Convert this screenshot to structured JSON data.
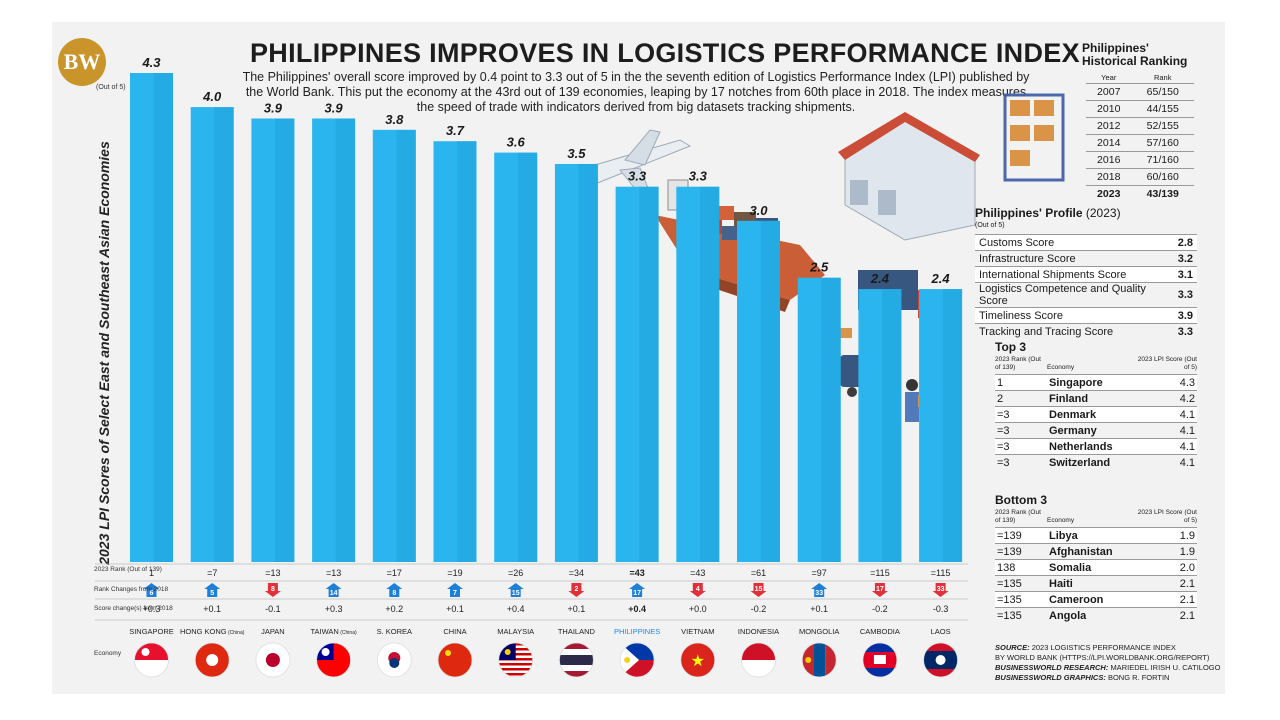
{
  "logo": "BW",
  "title": "PHILIPPINES IMPROVES IN LOGISTICS PERFORMANCE INDEX",
  "subtitle": "The Philippines' overall score improved by 0.4 point to 3.3 out of 5 in the the seventh edition of Logistics Performance Index (LPI) published by the World Bank. This put the economy at the 43rd out of 139 economies, leaping by 17 notches from 60th place in 2018. The index measures the speed of trade with indicators derived from big datasets tracking shipments.",
  "chart_data": {
    "type": "bar",
    "ylabel": "2023 LPI Scores of Select East and Southeast Asian Economies",
    "unit_note": "(Out of 5)",
    "ylim": [
      0,
      4.3
    ],
    "categories": [
      "SINGAPORE",
      "HONG KONG",
      "JAPAN",
      "TAIWAN",
      "S. KOREA",
      "CHINA",
      "MALAYSIA",
      "THAILAND",
      "PHILIPPINES",
      "VIETNAM",
      "INDONESIA",
      "MONGOLIA",
      "CAMBODIA",
      "LAOS"
    ],
    "category_notes": [
      "",
      "(China)",
      "",
      "(China)",
      "",
      "",
      "",
      "",
      "",
      "",
      "",
      "",
      "",
      ""
    ],
    "values": [
      4.3,
      4.0,
      3.9,
      3.9,
      3.8,
      3.7,
      3.6,
      3.5,
      3.3,
      3.3,
      3.0,
      2.5,
      2.4,
      2.4
    ],
    "value_labels": [
      "4.3",
      "4.0",
      "3.9",
      "3.9",
      "3.8",
      "3.7",
      "3.6",
      "3.5",
      "3.3",
      "3.3",
      "3.0",
      "2.5",
      "2.4",
      "2.4"
    ],
    "rank_2023": [
      "1",
      "=7",
      "=13",
      "=13",
      "=17",
      "=19",
      "=26",
      "=34",
      "=43",
      "=43",
      "=61",
      "=97",
      "=115",
      "=115"
    ],
    "rank_change": [
      "6",
      "5",
      "8",
      "14",
      "8",
      "7",
      "15",
      "2",
      "17",
      "4",
      "15",
      "33",
      "17",
      "33"
    ],
    "rank_direction": [
      "up",
      "up",
      "down",
      "up",
      "up",
      "up",
      "up",
      "down",
      "up",
      "down",
      "down",
      "up",
      "down",
      "down"
    ],
    "score_change": [
      "+0.3",
      "+0.1",
      "-0.1",
      "+0.3",
      "+0.2",
      "+0.1",
      "+0.4",
      "+0.1",
      "+0.4",
      "+0.0",
      "-0.2",
      "+0.1",
      "-0.2",
      "-0.3"
    ],
    "highlight": "PHILIPPINES",
    "bar_color": "#2bb5ee",
    "highlight_color": "#2bb5ee"
  },
  "row_labels": {
    "rank": "2023 Rank (Out of 139)",
    "rank_change": "Rank Changes from 2018",
    "score_change": "Score change(s) from 2018",
    "economy": "Economy"
  },
  "colors": {
    "up": "#1e7fd8",
    "down": "#e0303a",
    "accent": "#0a9fe0",
    "philippines": "#1e88e5"
  },
  "historical": {
    "title_line1": "Philippines'",
    "title_line2": "Historical Ranking",
    "col_year": "Year",
    "col_rank": "Rank",
    "rows": [
      {
        "year": "2007",
        "rank": "65/150"
      },
      {
        "year": "2010",
        "rank": "44/155"
      },
      {
        "year": "2012",
        "rank": "52/155"
      },
      {
        "year": "2014",
        "rank": "57/160"
      },
      {
        "year": "2016",
        "rank": "71/160"
      },
      {
        "year": "2018",
        "rank": "60/160"
      },
      {
        "year": "2023",
        "rank": "43/139"
      }
    ]
  },
  "profile": {
    "title": "Philippines' Profile",
    "year": "(2023)",
    "note": "(Out of 5)",
    "rows": [
      {
        "label": "Customs Score",
        "value": "2.8"
      },
      {
        "label": "Infrastructure Score",
        "value": "3.2"
      },
      {
        "label": "International Shipments Score",
        "value": "3.1"
      },
      {
        "label": "Logistics Competence and Quality Score",
        "value": "3.3"
      },
      {
        "label": "Timeliness Score",
        "value": "3.9"
      },
      {
        "label": "Tracking and Tracing Score",
        "value": "3.3"
      }
    ]
  },
  "top3": {
    "title": "Top 3",
    "col_rank": "2023 Rank (Out of 139)",
    "col_economy": "Economy",
    "col_score": "2023 LPI Score (Out of 5)",
    "rows": [
      {
        "rank": "1",
        "economy": "Singapore",
        "score": "4.3"
      },
      {
        "rank": "2",
        "economy": "Finland",
        "score": "4.2"
      },
      {
        "rank": "=3",
        "economy": "Denmark",
        "score": "4.1"
      },
      {
        "rank": "=3",
        "economy": "Germany",
        "score": "4.1"
      },
      {
        "rank": "=3",
        "economy": "Netherlands",
        "score": "4.1"
      },
      {
        "rank": "=3",
        "economy": "Switzerland",
        "score": "4.1"
      }
    ]
  },
  "bottom3": {
    "title": "Bottom 3",
    "col_rank": "2023 Rank (Out of 139)",
    "col_economy": "Economy",
    "col_score": "2023 LPI Score (Out of 5)",
    "rows": [
      {
        "rank": "=139",
        "economy": "Libya",
        "score": "1.9"
      },
      {
        "rank": "=139",
        "economy": "Afghanistan",
        "score": "1.9"
      },
      {
        "rank": "138",
        "economy": "Somalia",
        "score": "2.0"
      },
      {
        "rank": "=135",
        "economy": "Haiti",
        "score": "2.1"
      },
      {
        "rank": "=135",
        "economy": "Cameroon",
        "score": "2.1"
      },
      {
        "rank": "=135",
        "economy": "Angola",
        "score": "2.1"
      }
    ]
  },
  "source": {
    "line1_label": "SOURCE:",
    "line1": "2023 LOGISTICS PERFORMANCE INDEX",
    "line2": "BY WORLD BANK (HTTPS://LPI.WORLDBANK.ORG/REPORT)",
    "line3_label": "BUSINESSWORLD RESEARCH:",
    "line3": "MARIEDEL IRISH U. CATILOGO",
    "line4_label": "BUSINESSWORLD GRAPHICS:",
    "line4": "BONG R. FORTIN"
  }
}
